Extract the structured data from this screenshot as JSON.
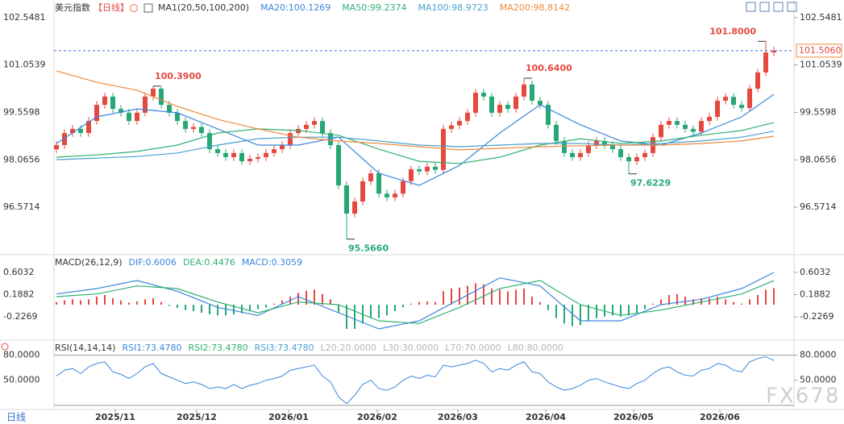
{
  "chart_data": [
    {
      "type": "candlestick",
      "title": "美元指数",
      "period": "【日线】",
      "indicator": "MA1(20,50,100,200)",
      "up_color": "#e5483f",
      "down_color": "#26a874",
      "xlim": [
        -0.3,
        91.5
      ],
      "ylim": [
        95.1,
        102.9
      ],
      "yticks": [
        96.5714,
        98.0656,
        99.5598,
        101.0539,
        102.5481
      ],
      "open": [
        98.4,
        98.53,
        98.91,
        99.04,
        98.91,
        99.29,
        99.8,
        100.06,
        99.67,
        99.55,
        99.29,
        99.55,
        100.06,
        100.31,
        99.8,
        99.55,
        99.29,
        99.04,
        99.1,
        98.91,
        98.4,
        98.28,
        98.15,
        98.28,
        98.02,
        98.1,
        98.15,
        98.28,
        98.4,
        98.53,
        98.91,
        99.04,
        99.17,
        99.29,
        98.91,
        98.53,
        97.26,
        96.37,
        96.75,
        97.39,
        97.64,
        97.0,
        96.88,
        97.0,
        97.39,
        97.77,
        97.7,
        97.85,
        97.75,
        99.04,
        99.15,
        99.29,
        99.55,
        100.18,
        100.06,
        99.55,
        99.8,
        99.67,
        100.06,
        100.44,
        99.93,
        99.8,
        99.17,
        98.66,
        98.28,
        98.15,
        98.28,
        98.53,
        98.66,
        98.53,
        98.4,
        98.15,
        98.02,
        98.15,
        98.28,
        98.78,
        99.17,
        99.29,
        99.17,
        99.04,
        98.95,
        99.29,
        99.42,
        99.93,
        100.05,
        99.8,
        99.7,
        100.31,
        100.82,
        101.45
      ],
      "high": [
        98.65,
        99.03,
        99.16,
        99.16,
        99.41,
        99.92,
        100.18,
        100.18,
        99.79,
        99.67,
        99.67,
        100.18,
        100.39,
        100.36,
        99.92,
        99.67,
        99.41,
        99.22,
        99.22,
        99.03,
        98.52,
        98.4,
        98.4,
        98.4,
        98.22,
        98.27,
        98.4,
        98.52,
        98.65,
        99.03,
        99.16,
        99.29,
        99.41,
        99.41,
        99.03,
        98.65,
        97.38,
        96.87,
        97.51,
        97.76,
        97.76,
        97.12,
        97.12,
        97.51,
        97.89,
        97.89,
        97.97,
        97.97,
        99.16,
        99.27,
        99.41,
        99.67,
        100.3,
        100.3,
        100.18,
        99.92,
        99.92,
        100.18,
        100.64,
        100.56,
        100.05,
        99.92,
        99.29,
        98.78,
        98.4,
        98.4,
        98.65,
        98.78,
        98.78,
        98.65,
        98.52,
        98.27,
        98.27,
        98.4,
        98.9,
        99.29,
        99.41,
        99.41,
        99.29,
        99.16,
        99.41,
        99.54,
        100.05,
        100.17,
        100.17,
        99.92,
        100.43,
        100.94,
        101.8,
        101.63
      ],
      "low": [
        98.28,
        98.41,
        98.79,
        98.79,
        98.79,
        99.17,
        99.68,
        99.55,
        99.43,
        99.17,
        99.17,
        99.43,
        99.94,
        99.68,
        99.43,
        99.17,
        98.92,
        98.92,
        98.79,
        98.28,
        98.16,
        98.03,
        98.03,
        97.9,
        97.9,
        97.98,
        98.03,
        98.16,
        98.28,
        98.41,
        98.79,
        98.92,
        99.05,
        98.79,
        98.41,
        97.14,
        95.566,
        96.25,
        96.63,
        97.27,
        96.88,
        96.76,
        96.76,
        96.88,
        97.27,
        97.58,
        97.58,
        97.63,
        97.63,
        98.92,
        99.03,
        99.17,
        99.43,
        99.94,
        99.43,
        99.43,
        99.55,
        99.55,
        99.94,
        99.81,
        99.68,
        99.05,
        98.54,
        98.16,
        98.03,
        98.03,
        98.16,
        98.41,
        98.41,
        98.28,
        98.03,
        97.6229,
        97.9,
        98.03,
        98.16,
        98.66,
        99.05,
        99.05,
        98.92,
        98.83,
        98.83,
        99.17,
        99.3,
        99.81,
        99.68,
        99.58,
        99.58,
        100.19,
        100.7,
        101.33
      ],
      "close": [
        98.53,
        98.91,
        99.04,
        98.91,
        99.29,
        99.8,
        100.06,
        99.67,
        99.55,
        99.29,
        99.55,
        100.06,
        100.31,
        99.8,
        99.55,
        99.29,
        99.04,
        99.1,
        98.91,
        98.4,
        98.28,
        98.15,
        98.28,
        98.02,
        98.1,
        98.15,
        98.28,
        98.4,
        98.53,
        98.91,
        99.04,
        99.17,
        99.29,
        98.91,
        98.53,
        97.26,
        96.37,
        96.75,
        97.39,
        97.64,
        97.0,
        96.88,
        97.0,
        97.39,
        97.77,
        97.7,
        97.85,
        97.75,
        99.04,
        99.15,
        99.29,
        99.55,
        100.18,
        100.06,
        99.55,
        99.8,
        99.67,
        100.06,
        100.44,
        99.93,
        99.8,
        99.17,
        98.66,
        98.28,
        98.15,
        98.28,
        98.53,
        98.66,
        98.53,
        98.4,
        98.15,
        98.02,
        98.15,
        98.28,
        98.78,
        99.17,
        99.29,
        99.17,
        99.04,
        98.95,
        99.29,
        99.42,
        99.93,
        100.05,
        99.8,
        99.7,
        100.31,
        100.82,
        101.45,
        101.506
      ],
      "lines": [
        {
          "name": "MA20:100.1269",
          "color": "#3a86dc",
          "x": [
            0,
            5,
            10,
            15,
            20,
            25,
            30,
            35,
            40,
            45,
            50,
            55,
            60,
            65,
            70,
            75,
            80,
            85,
            89
          ],
          "values": [
            98.58,
            99.42,
            99.67,
            99.55,
            99.04,
            98.53,
            98.53,
            98.78,
            97.64,
            97.26,
            97.89,
            98.91,
            99.8,
            99.17,
            98.66,
            98.53,
            98.91,
            99.42,
            100.13
          ]
        },
        {
          "name": "MA50:99.2374",
          "color": "#2eb073",
          "x": [
            0,
            5,
            10,
            15,
            20,
            25,
            30,
            35,
            40,
            45,
            50,
            55,
            60,
            65,
            70,
            75,
            80,
            85,
            89
          ],
          "values": [
            98.15,
            98.22,
            98.33,
            98.53,
            98.91,
            99.04,
            98.99,
            98.84,
            98.4,
            98.02,
            97.95,
            98.15,
            98.53,
            98.73,
            98.58,
            98.66,
            98.84,
            98.99,
            99.24
          ]
        },
        {
          "name": "MA100:98.9723",
          "color": "#4a9fd0",
          "x": [
            0,
            5,
            10,
            15,
            20,
            25,
            30,
            35,
            40,
            45,
            50,
            55,
            60,
            65,
            70,
            75,
            80,
            85,
            89
          ],
          "values": [
            98.07,
            98.12,
            98.17,
            98.28,
            98.53,
            98.73,
            98.78,
            98.78,
            98.66,
            98.53,
            98.48,
            98.53,
            98.58,
            98.58,
            98.53,
            98.58,
            98.66,
            98.78,
            98.97
          ]
        },
        {
          "name": "MA200:98.8142",
          "color": "#ee8a3c",
          "x": [
            0,
            5,
            10,
            15,
            20,
            25,
            30,
            35,
            40,
            45,
            50,
            55,
            60,
            65,
            70,
            75,
            80,
            85,
            89
          ],
          "values": [
            100.87,
            100.51,
            100.26,
            99.75,
            99.34,
            99.04,
            98.78,
            98.66,
            98.58,
            98.48,
            98.38,
            98.43,
            98.48,
            98.51,
            98.53,
            98.53,
            98.58,
            98.66,
            98.81
          ]
        }
      ],
      "annotations": [
        {
          "label": "100.3900",
          "x": 12,
          "y": 100.39
        },
        {
          "label": "95.5660",
          "x": 36,
          "y": 95.566
        },
        {
          "label": "100.6400",
          "x": 58,
          "y": 100.64
        },
        {
          "label": "97.6229",
          "x": 71,
          "y": 97.6229
        },
        {
          "label": "101.8000",
          "x": 88,
          "y": 101.8
        }
      ],
      "last_price": {
        "value": 101.506,
        "label": "101.5060",
        "color": "#3a6fd8"
      }
    },
    {
      "type": "macd",
      "title": "MACD(26,12,9)",
      "xlim": [
        -0.3,
        91.5
      ],
      "ylim": [
        -0.63,
        0.9
      ],
      "yticks": [
        -0.2269,
        0.1882,
        0.6032
      ],
      "histogram": {
        "name": "MACD:0.3059",
        "up_color": "#e5483f",
        "down_color": "#26a874",
        "values": [
          0.05,
          0.08,
          0.1,
          0.08,
          0.1,
          0.15,
          0.18,
          0.12,
          0.08,
          0.04,
          0.06,
          0.1,
          0.12,
          0.05,
          -0.02,
          -0.06,
          -0.1,
          -0.12,
          -0.15,
          -0.18,
          -0.2,
          -0.2,
          -0.18,
          -0.16,
          -0.12,
          -0.08,
          -0.05,
          0.02,
          0.08,
          0.15,
          0.22,
          0.26,
          0.28,
          0.2,
          0.1,
          -0.15,
          -0.45,
          -0.45,
          -0.35,
          -0.25,
          -0.25,
          -0.2,
          -0.12,
          -0.05,
          0.02,
          0.05,
          0.06,
          0.05,
          0.25,
          0.3,
          0.32,
          0.35,
          0.4,
          0.38,
          0.3,
          0.28,
          0.25,
          0.28,
          0.3,
          0.15,
          0.05,
          -0.1,
          -0.25,
          -0.35,
          -0.4,
          -0.38,
          -0.3,
          -0.25,
          -0.22,
          -0.2,
          -0.22,
          -0.2,
          -0.15,
          -0.08,
          0.02,
          0.1,
          0.18,
          0.2,
          0.15,
          0.1,
          0.12,
          0.12,
          0.15,
          0.1,
          0.05,
          0.02,
          0.1,
          0.18,
          0.28,
          0.3059
        ]
      },
      "lines": [
        {
          "name": "DIF:0.6006",
          "color": "#3a86dc",
          "x": [
            0,
            5,
            10,
            15,
            20,
            25,
            30,
            35,
            40,
            45,
            50,
            55,
            60,
            65,
            70,
            75,
            80,
            85,
            89
          ],
          "values": [
            0.2,
            0.3,
            0.45,
            0.25,
            -0.05,
            -0.2,
            0.15,
            -0.15,
            -0.45,
            -0.3,
            0.1,
            0.5,
            0.35,
            -0.3,
            -0.3,
            0.0,
            0.1,
            0.3,
            0.6006
          ]
        },
        {
          "name": "DEA:0.4476",
          "color": "#2eb073",
          "x": [
            0,
            5,
            10,
            15,
            20,
            25,
            30,
            35,
            40,
            45,
            50,
            55,
            60,
            65,
            70,
            75,
            80,
            85,
            89
          ],
          "values": [
            0.15,
            0.2,
            0.35,
            0.3,
            0.05,
            -0.15,
            0.05,
            0.0,
            -0.3,
            -0.35,
            -0.05,
            0.3,
            0.45,
            0.0,
            -0.2,
            -0.1,
            0.05,
            0.2,
            0.4476
          ]
        }
      ]
    },
    {
      "type": "rsi",
      "title": "RSI(14,14,14)",
      "xlim": [
        -0.3,
        91.5
      ],
      "ylim": [
        15,
        95
      ],
      "yticks": [
        {
          "value": 50,
          "label": "50.0000"
        },
        {
          "value": 80,
          "label": "80.0000"
        }
      ],
      "xticks": [
        {
          "value": 7.3,
          "label": "2025/11"
        },
        {
          "value": 17.4,
          "label": "2025/12"
        },
        {
          "value": 28.8,
          "label": "2026/01"
        },
        {
          "value": 39.8,
          "label": "2026/02"
        },
        {
          "value": 49.8,
          "label": "2026/03"
        },
        {
          "value": 60.7,
          "label": "2026/04"
        },
        {
          "value": 71.6,
          "label": "2026/05"
        },
        {
          "value": 82.3,
          "label": "2026/06"
        }
      ],
      "series": [
        {
          "name": "RSI1:73.4780",
          "color": "#3a86dc",
          "values": [
            55,
            62,
            64,
            58,
            66,
            70,
            72,
            60,
            57,
            52,
            58,
            66,
            70,
            58,
            54,
            50,
            46,
            48,
            45,
            40,
            42,
            40,
            45,
            40,
            44,
            46,
            50,
            52,
            55,
            62,
            64,
            66,
            68,
            55,
            48,
            30,
            22,
            32,
            45,
            50,
            40,
            38,
            42,
            50,
            55,
            52,
            56,
            54,
            68,
            66,
            68,
            70,
            74,
            70,
            60,
            64,
            62,
            68,
            72,
            60,
            58,
            48,
            42,
            38,
            40,
            44,
            50,
            52,
            48,
            45,
            42,
            40,
            46,
            50,
            58,
            64,
            66,
            60,
            56,
            55,
            62,
            64,
            70,
            68,
            62,
            60,
            72,
            76,
            78,
            73.478
          ]
        },
        {
          "name": "RSI2:73.4780",
          "color": "#2eb073"
        },
        {
          "name": "RSI3:73.4780",
          "color": "#4a9fd0"
        }
      ],
      "levels": [
        {
          "value": 20,
          "label": "L20:20.0000",
          "drawn": true
        },
        {
          "value": 30,
          "label": "L30:30.0000",
          "drawn": false
        },
        {
          "value": 70,
          "label": "L70:70.0000",
          "drawn": false
        },
        {
          "value": 80,
          "label": "L80:80.0000",
          "drawn": true
        }
      ]
    }
  ],
  "footer": {
    "period_tab": "日线",
    "watermark": "FX678"
  }
}
